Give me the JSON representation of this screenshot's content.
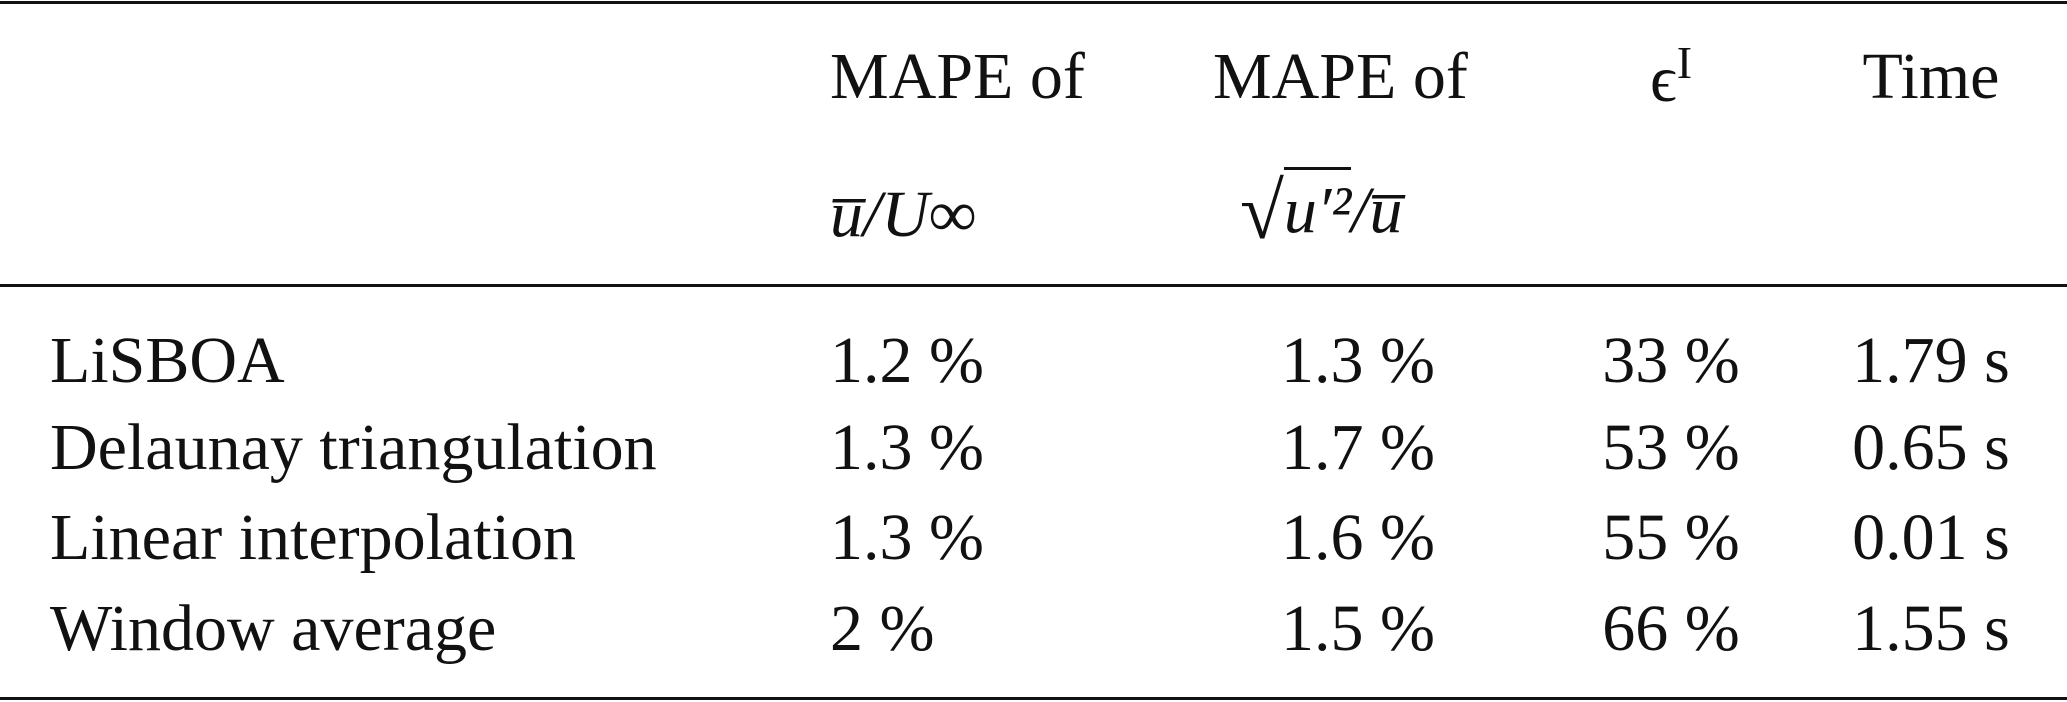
{
  "table": {
    "header": {
      "col1": {
        "line1": "MAPE of",
        "line2": "u̅/U∞"
      },
      "col2": {
        "line1": "MAPE of",
        "root": "u′²",
        "tail": "/u̅"
      },
      "col3": {
        "symbol": "ϵ",
        "sup": "I"
      },
      "col4": {
        "line1": "Time"
      }
    },
    "rows": [
      [
        "LiSBOA",
        "1.2 %",
        "1.3 %",
        "33 %",
        "1.79 s"
      ],
      [
        "Delaunay triangulation",
        "1.3 %",
        "1.7 %",
        "53 %",
        "0.65 s"
      ],
      [
        "Linear interpolation",
        "1.3 %",
        "1.6 %",
        "55 %",
        "0.01 s"
      ],
      [
        "Window average",
        "2 %",
        "1.5 %",
        "66 %",
        "1.55 s"
      ]
    ]
  }
}
